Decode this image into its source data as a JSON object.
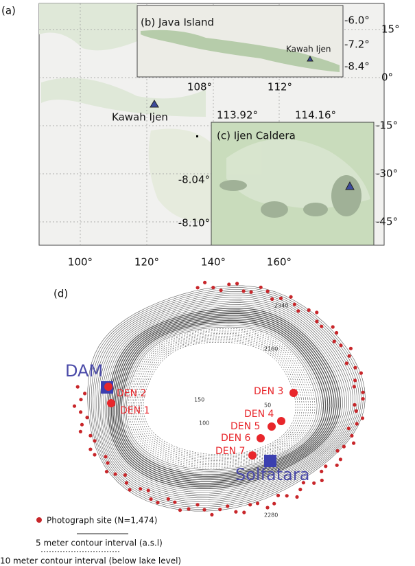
{
  "panel_a": {
    "label": "(a)",
    "volcano": "Kawah Ijen",
    "x_ticks": [
      "100°",
      "120°",
      "140°",
      "160°"
    ],
    "y_ticks": [
      "15°",
      "0°",
      "-15°",
      "-30°",
      "-45°"
    ],
    "inset_b": {
      "title": "(b) Java Island",
      "volcano": "Kawah Ijen",
      "y_ticks": [
        "-6.0°",
        "-7.2°",
        "-8.4°"
      ],
      "x_ticks": [
        "108°",
        "112°"
      ]
    },
    "inset_c": {
      "title": "(c) Ijen Caldera",
      "x_ticks": [
        "113.92°",
        "114.16°"
      ],
      "y_ticks": [
        "-8.04°",
        "-8.10°"
      ]
    }
  },
  "panel_d": {
    "label": "(d)",
    "dam": "DAM",
    "solfatara": "Solfatara",
    "den": [
      "DEN 1",
      "DEN 2",
      "DEN 3",
      "DEN 4",
      "DEN 5",
      "DEN 6",
      "DEN 7"
    ],
    "contour_labels": [
      "2340",
      "2160",
      "150",
      "100",
      "50",
      "2280"
    ],
    "legend": {
      "photo": "Photograph site (N=1,474)",
      "contour_5m": "5 meter contour interval (a.s.l)",
      "contour_10m": "10 meter contour interval (below lake level)"
    }
  }
}
